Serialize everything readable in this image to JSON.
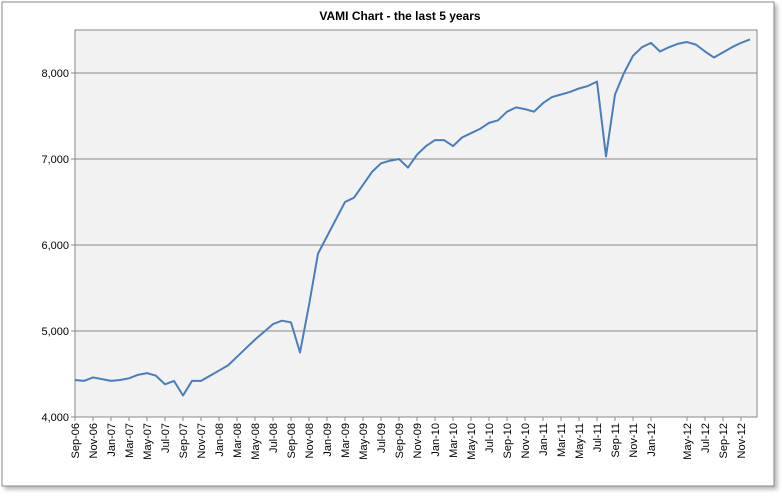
{
  "chart_data": {
    "type": "line",
    "title": "VAMI Chart  - the last 5 years",
    "categories": [
      "Sep-06",
      null,
      "Nov-06",
      null,
      "Jan-07",
      null,
      "Mar-07",
      null,
      "May-07",
      null,
      "Jul-07",
      null,
      "Sep-07",
      null,
      "Nov-07",
      null,
      "Jan-08",
      null,
      "Mar-08",
      null,
      "May-08",
      null,
      "Jul-08",
      null,
      "Sep-08",
      null,
      "Nov-08",
      null,
      "Jan-09",
      null,
      "Mar-09",
      null,
      "May-09",
      null,
      "Jul-09",
      null,
      "Sep-09",
      null,
      "Nov-09",
      null,
      "Jan-10",
      null,
      "Mar-10",
      null,
      "May-10",
      null,
      "Jul-10",
      null,
      "Sep-10",
      null,
      "Nov-10",
      null,
      "Jan-11",
      null,
      "Mar-11",
      null,
      "May-11",
      null,
      "Jul-11",
      null,
      "Sep-11",
      null,
      "Nov-11",
      null,
      "Jan-12",
      null,
      null,
      null,
      "May-12",
      null,
      "Jul-12",
      null,
      "Sep-12",
      null,
      "Nov-12",
      null
    ],
    "values": [
      4430,
      4420,
      4460,
      4440,
      4420,
      4430,
      4450,
      4490,
      4510,
      4480,
      4380,
      4420,
      4250,
      4420,
      4420,
      4480,
      4540,
      4600,
      4700,
      4800,
      4900,
      4990,
      5080,
      5120,
      5100,
      4750,
      5300,
      5900,
      6100,
      6300,
      6500,
      6550,
      6700,
      6850,
      6950,
      6980,
      7000,
      6900,
      7050,
      7150,
      7220,
      7220,
      7150,
      7250,
      7300,
      7350,
      7420,
      7450,
      7550,
      7600,
      7580,
      7550,
      7650,
      7720,
      7750,
      7780,
      7820,
      7850,
      7900,
      7030,
      7750,
      8000,
      8200,
      8300,
      8350,
      8250,
      8300,
      8340,
      8360,
      8330,
      8250,
      8180,
      8240,
      8300,
      8350,
      8390
    ],
    "color": "#4a7ebb",
    "ylim": [
      4000,
      8500
    ],
    "yticks": [
      {
        "value": 4000,
        "label": "4,000"
      },
      {
        "value": 5000,
        "label": "5,000"
      },
      {
        "value": 6000,
        "label": "6,000"
      },
      {
        "value": 7000,
        "label": "7,000"
      },
      {
        "value": 8000,
        "label": "8,000"
      }
    ],
    "grid": true
  }
}
